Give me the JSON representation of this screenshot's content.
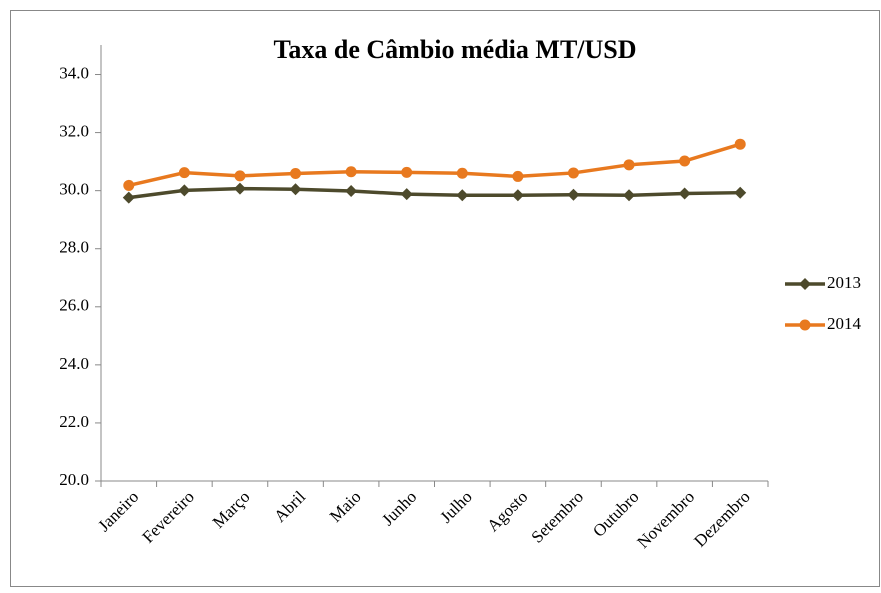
{
  "chart_data": {
    "type": "line",
    "title": "Taxa de Câmbio média MT/USD",
    "categories": [
      "Janeiro",
      "Fevereiro",
      "Março",
      "Abril",
      "Maio",
      "Junho",
      "Julho",
      "Agosto",
      "Setembro",
      "Outubro",
      "Novembro",
      "Dezembro"
    ],
    "series": [
      {
        "name": "2013",
        "color": "#4d4a2c",
        "marker": "diamond",
        "values": [
          29.76,
          30.01,
          30.07,
          30.05,
          29.99,
          29.88,
          29.84,
          29.84,
          29.86,
          29.84,
          29.9,
          29.93
        ]
      },
      {
        "name": "2014",
        "color": "#e8791f",
        "marker": "circle",
        "values": [
          30.18,
          30.62,
          30.51,
          30.59,
          30.65,
          30.63,
          30.6,
          30.49,
          30.61,
          30.89,
          31.02,
          31.6
        ]
      }
    ],
    "ylim": [
      20,
      34.5
    ],
    "yticks": [
      {
        "value": 20,
        "label": "20.0"
      },
      {
        "value": 22,
        "label": "22.0"
      },
      {
        "value": 24,
        "label": "24.0"
      },
      {
        "value": 26,
        "label": "26.0"
      },
      {
        "value": 28,
        "label": "28.0"
      },
      {
        "value": 30,
        "label": "30.0"
      },
      {
        "value": 32,
        "label": "32.0"
      },
      {
        "value": 34,
        "label": "34.0"
      }
    ],
    "grid": false,
    "legend": "right"
  }
}
